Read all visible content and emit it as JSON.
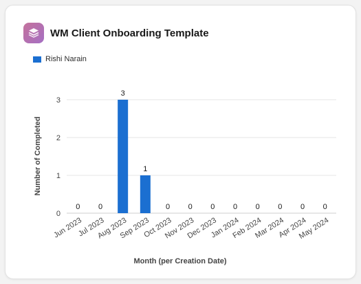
{
  "header": {
    "title": "WM Client Onboarding Template",
    "icon": "layers-icon"
  },
  "colors": {
    "bar": "#1b6fd1",
    "grid": "#e6e6e6"
  },
  "chart_data": {
    "type": "bar",
    "categories": [
      "Jun 2023",
      "Jul 2023",
      "Aug 2023",
      "Sep 2023",
      "Oct 2023",
      "Nov 2023",
      "Dec 2023",
      "Jan 2024",
      "Feb 2024",
      "Mar 2024",
      "Apr 2024",
      "May 2024"
    ],
    "series": [
      {
        "name": "Rishi Narain",
        "values": [
          0,
          0,
          3,
          1,
          0,
          0,
          0,
          0,
          0,
          0,
          0,
          0
        ]
      }
    ],
    "xlabel": "Month (per Creation Date)",
    "ylabel": "Number of Completed",
    "ylim": [
      0,
      3
    ],
    "yticks": [
      0,
      1,
      2,
      3
    ],
    "grid": true,
    "legend": "top-left",
    "data_labels": true
  }
}
